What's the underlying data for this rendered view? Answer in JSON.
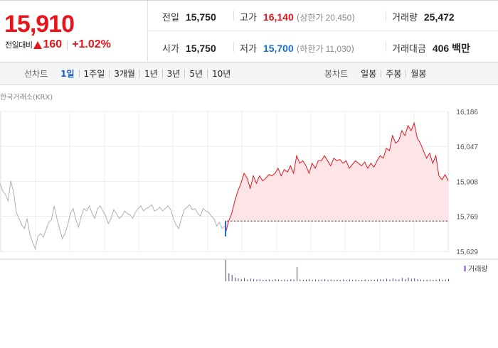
{
  "quote": {
    "price": "15,910",
    "change_label": "전일대비",
    "change_amount": "160",
    "change_rate": "+1.02%",
    "direction": "up",
    "stats": {
      "prev_close_label": "전일",
      "prev_close": "15,750",
      "high_label": "고가",
      "high": "16,140",
      "upper_limit_label": "(상한가",
      "upper_limit": "20,450",
      "volume_label": "거래량",
      "volume": "25,472",
      "open_label": "시가",
      "open": "15,750",
      "low_label": "저가",
      "low": "15,700",
      "lower_limit_label": "(하한가",
      "lower_limit": "11,030",
      "turnover_label": "거래대금",
      "turnover": "406 백만"
    },
    "colors": {
      "up": "#e8141c",
      "down": "#1a6fd4",
      "prev_line": "#b0b0b0"
    }
  },
  "tabs": {
    "period_title": "선차트",
    "periods": [
      "1일",
      "1주일",
      "3개월",
      "1년",
      "3년",
      "5년",
      "10년"
    ],
    "active_period": "1일",
    "candle_title": "봉차트",
    "candles": [
      "일봉",
      "주봉",
      "월봉"
    ]
  },
  "chart_data": {
    "type": "line",
    "source": "한국거래소(KRX)",
    "legend": "거래량",
    "y_ticks": [
      "16,186",
      "16,047",
      "15,908",
      "15,769",
      "15,629"
    ],
    "ylim": [
      15629,
      16186
    ],
    "reference_close": 15750,
    "previous_day": {
      "values": [
        15900,
        15870,
        15855,
        15830,
        15910,
        15865,
        15785,
        15760,
        15735,
        15720,
        15760,
        15700,
        15665,
        15640,
        15690,
        15700,
        15685,
        15715,
        15745,
        15755,
        15810,
        15760,
        15720,
        15680,
        15700,
        15735,
        15780,
        15800,
        15755,
        15725,
        15770,
        15800,
        15790,
        15810,
        15780,
        15760,
        15800,
        15810,
        15790,
        15770,
        15740,
        15760,
        15795,
        15780,
        15760,
        15770,
        15790,
        15780,
        15775,
        15760,
        15785,
        15800,
        15810,
        15790,
        15800,
        15805,
        15815,
        15790,
        15795,
        15805,
        15790,
        15800,
        15810,
        15795,
        15760,
        15735,
        15720,
        15760,
        15795,
        15805,
        15815,
        15795,
        15800,
        15780,
        15770,
        15800,
        15790,
        15785,
        15770,
        15760,
        15730,
        15745,
        15720,
        15730
      ]
    },
    "today": {
      "values": [
        15700,
        15750,
        15780,
        15830,
        15870,
        15900,
        15940,
        15920,
        15880,
        15930,
        15900,
        15930,
        15910,
        15920,
        15935,
        15930,
        15940,
        15960,
        15930,
        15955,
        15945,
        15970,
        15940,
        16010,
        15980,
        15990,
        15970,
        15940,
        15980,
        15960,
        15990,
        15990,
        16010,
        15990,
        15970,
        16000,
        15990,
        15995,
        15980,
        15990,
        15960,
        15975,
        15990,
        15980,
        15970,
        15985,
        15960,
        15980,
        15965,
        15990,
        16010,
        16000,
        16040,
        16030,
        16090,
        16060,
        16070,
        16110,
        16090,
        16130,
        16110,
        16140,
        16080,
        16060,
        16030,
        16000,
        16020,
        15980,
        16010,
        15930,
        15915,
        15935,
        15910
      ],
      "volume": [
        60,
        22,
        18,
        10,
        8,
        6,
        9,
        5,
        7,
        6,
        5,
        6,
        4,
        5,
        5,
        4,
        6,
        5,
        4,
        5,
        4,
        6,
        5,
        40,
        5,
        4,
        5,
        6,
        4,
        5,
        4,
        5,
        6,
        4,
        5,
        4,
        5,
        4,
        5,
        4,
        5,
        4,
        5,
        4,
        4,
        5,
        4,
        5,
        4,
        5,
        6,
        5,
        7,
        5,
        8,
        6,
        5,
        9,
        6,
        10,
        7,
        8,
        6,
        5,
        4,
        4,
        5,
        4,
        5,
        6,
        4,
        5,
        6
      ]
    }
  }
}
